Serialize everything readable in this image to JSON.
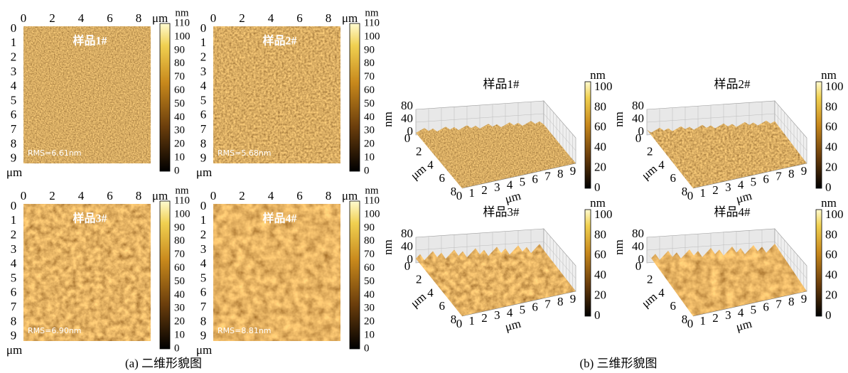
{
  "panel_2d": {
    "caption": "(a) 二维形貌图",
    "x_unit": "μm",
    "y_unit": "μm",
    "x_ticks": [
      "0",
      "2",
      "4",
      "6",
      "8"
    ],
    "y_ticks": [
      "0",
      "1",
      "2",
      "3",
      "4",
      "5",
      "6",
      "7",
      "8",
      "9"
    ],
    "colorbar_unit": "nm",
    "colorbar_ticks": [
      "110",
      "100",
      "90",
      "80",
      "70",
      "60",
      "50",
      "40",
      "30",
      "20",
      "10",
      "0"
    ],
    "images": [
      {
        "title": "样品1#",
        "rms": "RMS=6.61nm"
      },
      {
        "title": "样品2#",
        "rms": "RMS=5.68nm"
      },
      {
        "title": "样品3#",
        "rms": "RMS=6.90nm"
      },
      {
        "title": "样品4#",
        "rms": "RMS=8.81nm"
      }
    ]
  },
  "panel_3d": {
    "caption": "(b) 三维形貌图",
    "x_unit": "μm",
    "y_unit": "μm",
    "z_unit": "nm",
    "x_ticks": [
      "0",
      "1",
      "2",
      "3",
      "4",
      "5",
      "6",
      "7",
      "8",
      "9"
    ],
    "y_ticks": [
      "0",
      "2",
      "4",
      "6",
      "8"
    ],
    "z_ticks": [
      "80",
      "40",
      "0"
    ],
    "colorbar_unit": "nm",
    "colorbar_ticks": [
      "100",
      "80",
      "60",
      "40",
      "20",
      "0"
    ],
    "images": [
      {
        "title": "样品1#"
      },
      {
        "title": "样品2#"
      },
      {
        "title": "样品3#"
      },
      {
        "title": "样品4#"
      }
    ]
  }
}
